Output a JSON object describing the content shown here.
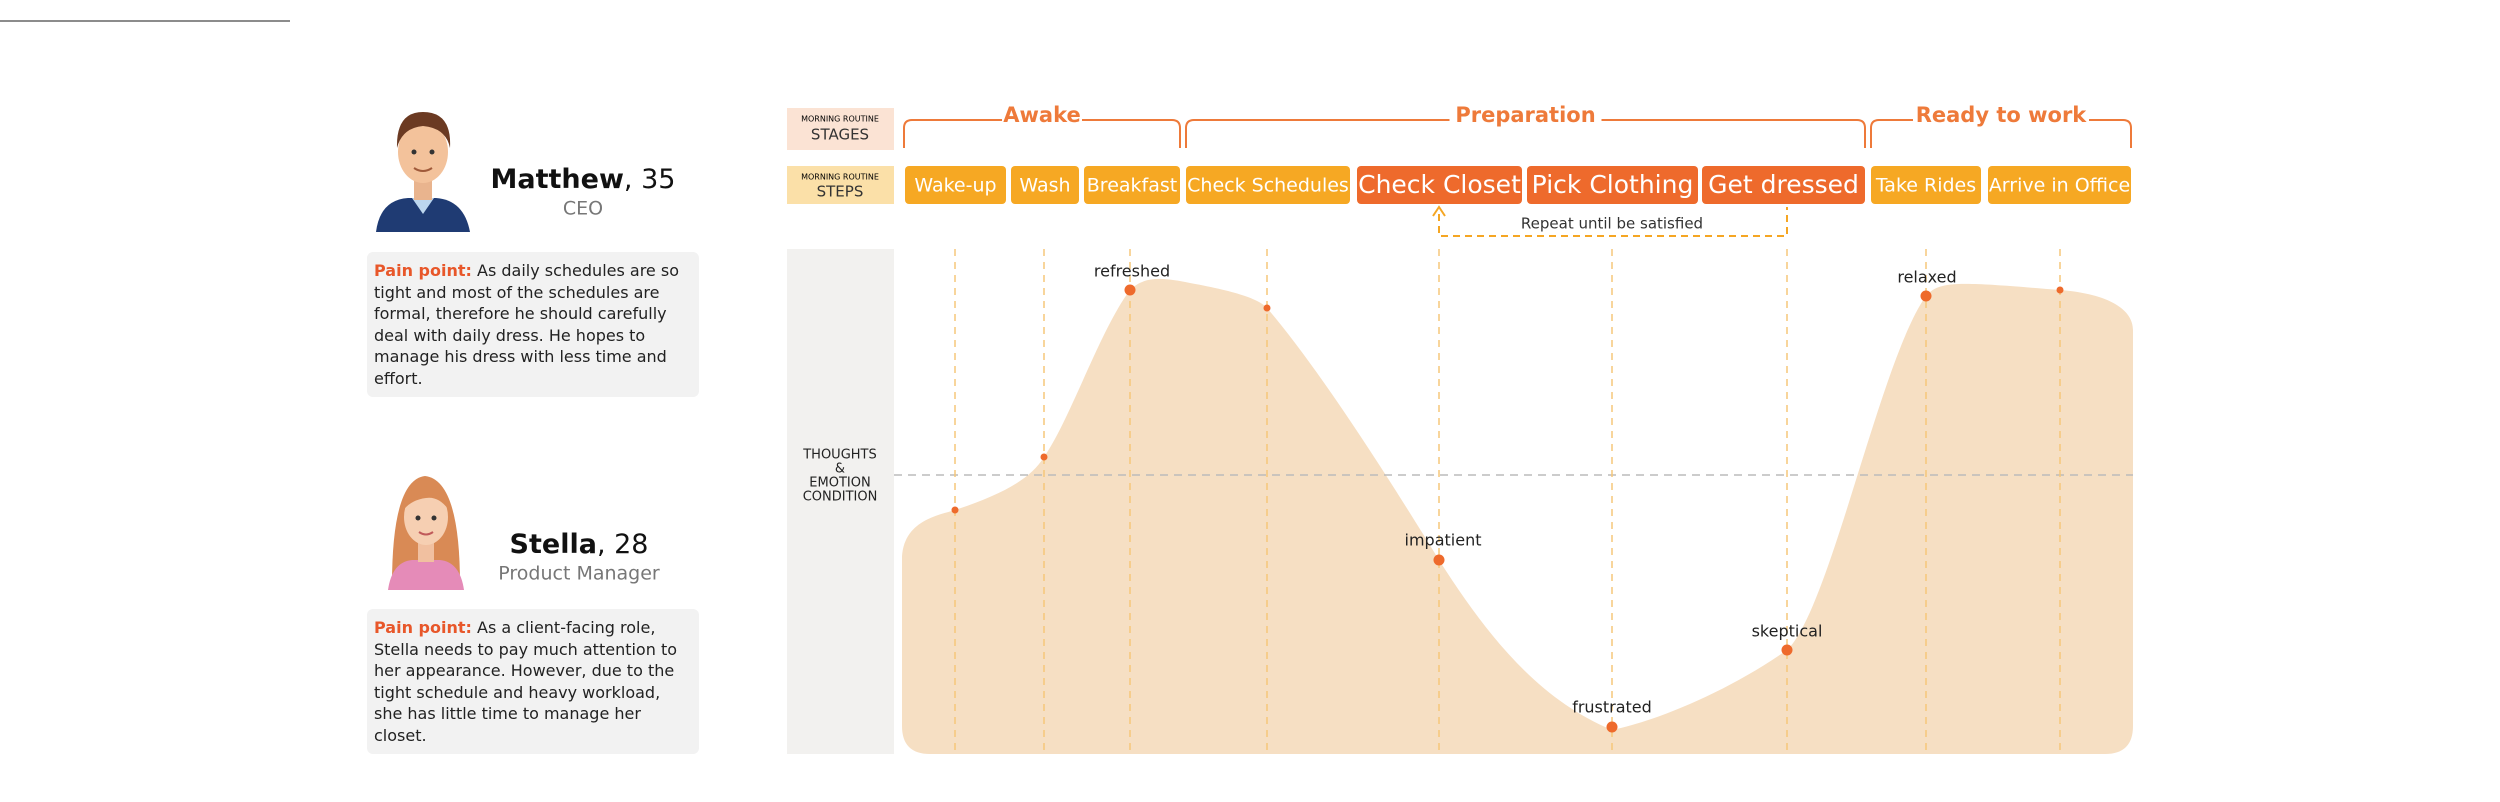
{
  "personas": [
    {
      "name": "Matthew",
      "age": ", 35",
      "role": "CEO",
      "pain_label": "Pain point:",
      "pain_text": "As daily schedules are so tight and most of the schedules are formal, therefore he should carefully deal with daily dress. He hopes to manage his dress with less time and effort."
    },
    {
      "name": "Stella",
      "age": ", 28",
      "role": "Product Manager",
      "pain_label": "Pain point:",
      "pain_text": "As a client-facing role, Stella needs to pay much attention to her appearance. However, due to the tight schedule and heavy workload, she has little time to manage her closet."
    }
  ],
  "row_labels": {
    "stages": {
      "small": "MORNING ROUTINE",
      "big": "STAGES"
    },
    "steps": {
      "small": "MORNING ROUTINE",
      "big": "STEPS"
    },
    "thoughts": [
      "THOUGHTS",
      "&",
      "EMOTION",
      "CONDITION"
    ]
  },
  "stages": [
    "Awake",
    "Preparation",
    "Ready to work"
  ],
  "steps": [
    "Wake-up",
    "Wash",
    "Breakfast",
    "Check Schedules",
    "Check Closet",
    "Pick Clothing",
    "Get dressed",
    "Take Rides",
    "Arrive in Office"
  ],
  "loop_note": "Repeat until be satisfied",
  "emotions": [
    "refreshed",
    "impatient",
    "frustrated",
    "skeptical",
    "relaxed"
  ]
}
